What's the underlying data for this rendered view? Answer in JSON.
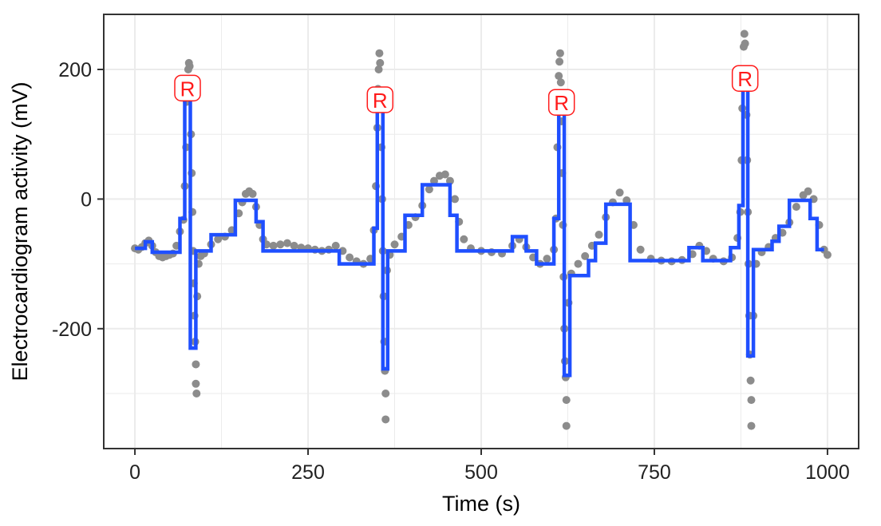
{
  "chart_data": {
    "type": "line",
    "title": "",
    "xlabel": "Time (s)",
    "ylabel": "Electrocardiogram activity (mV)",
    "xlim": [
      -45,
      1045
    ],
    "ylim": [
      -385,
      285
    ],
    "x_ticks": [
      0,
      250,
      500,
      750,
      1000
    ],
    "y_ticks": [
      -200,
      0,
      200
    ],
    "x_tick_labels": [
      "0",
      "250",
      "500",
      "750",
      "1000"
    ],
    "y_tick_labels": [
      "-200",
      "0",
      "200"
    ],
    "grid": true,
    "legend": "none",
    "colors": {
      "raw_points": "#8c8c8c",
      "fitted_step": "#1f4fff",
      "peak_label": "#ff1a1a",
      "panel_border": "#333333",
      "grid": "#ebebeb"
    },
    "series": [
      {
        "type": "scatter",
        "values": [
          [
            0,
            -76
          ],
          [
            5,
            -78
          ],
          [
            10,
            -74
          ],
          [
            15,
            -68
          ],
          [
            20,
            -64
          ],
          [
            25,
            -72
          ],
          [
            30,
            -82
          ],
          [
            35,
            -88
          ],
          [
            40,
            -90
          ],
          [
            45,
            -88
          ],
          [
            50,
            -86
          ],
          [
            55,
            -84
          ],
          [
            60,
            -72
          ],
          [
            65,
            -50
          ],
          [
            70,
            -32
          ],
          [
            72,
            20
          ],
          [
            74,
            80
          ],
          [
            75,
            150
          ],
          [
            76,
            180
          ],
          [
            77,
            200
          ],
          [
            78,
            210
          ],
          [
            79,
            205
          ],
          [
            80,
            170
          ],
          [
            81,
            100
          ],
          [
            82,
            40
          ],
          [
            83,
            -20
          ],
          [
            84,
            -80
          ],
          [
            85,
            -130
          ],
          [
            86,
            -180
          ],
          [
            87,
            -220
          ],
          [
            88,
            -255
          ],
          [
            88,
            -285
          ],
          [
            89,
            -300
          ],
          [
            90,
            -150
          ],
          [
            92,
            -100
          ],
          [
            95,
            -88
          ],
          [
            100,
            -84
          ],
          [
            110,
            -70
          ],
          [
            120,
            -62
          ],
          [
            130,
            -58
          ],
          [
            140,
            -48
          ],
          [
            150,
            -22
          ],
          [
            155,
            -5
          ],
          [
            160,
            8
          ],
          [
            165,
            12
          ],
          [
            170,
            8
          ],
          [
            175,
            -12
          ],
          [
            180,
            -40
          ],
          [
            185,
            -62
          ],
          [
            190,
            -70
          ],
          [
            200,
            -72
          ],
          [
            210,
            -70
          ],
          [
            220,
            -68
          ],
          [
            230,
            -72
          ],
          [
            240,
            -75
          ],
          [
            250,
            -76
          ],
          [
            260,
            -78
          ],
          [
            270,
            -80
          ],
          [
            280,
            -78
          ],
          [
            290,
            -72
          ],
          [
            300,
            -80
          ],
          [
            310,
            -90
          ],
          [
            320,
            -96
          ],
          [
            330,
            -100
          ],
          [
            340,
            -92
          ],
          [
            345,
            -48
          ],
          [
            348,
            20
          ],
          [
            350,
            110
          ],
          [
            351,
            170
          ],
          [
            352,
            200
          ],
          [
            353,
            225
          ],
          [
            354,
            210
          ],
          [
            355,
            150
          ],
          [
            356,
            80
          ],
          [
            357,
            0
          ],
          [
            358,
            -80
          ],
          [
            359,
            -150
          ],
          [
            360,
            -220
          ],
          [
            361,
            -265
          ],
          [
            362,
            -300
          ],
          [
            362,
            -340
          ],
          [
            364,
            -110
          ],
          [
            368,
            -86
          ],
          [
            375,
            -70
          ],
          [
            385,
            -58
          ],
          [
            395,
            -40
          ],
          [
            405,
            -28
          ],
          [
            415,
            -10
          ],
          [
            425,
            15
          ],
          [
            432,
            28
          ],
          [
            440,
            36
          ],
          [
            448,
            38
          ],
          [
            455,
            28
          ],
          [
            462,
            0
          ],
          [
            468,
            -35
          ],
          [
            475,
            -62
          ],
          [
            485,
            -76
          ],
          [
            500,
            -80
          ],
          [
            515,
            -82
          ],
          [
            530,
            -84
          ],
          [
            545,
            -72
          ],
          [
            555,
            -62
          ],
          [
            565,
            -74
          ],
          [
            575,
            -90
          ],
          [
            585,
            -100
          ],
          [
            595,
            -92
          ],
          [
            605,
            -78
          ],
          [
            608,
            -30
          ],
          [
            610,
            80
          ],
          [
            611,
            150
          ],
          [
            612,
            190
          ],
          [
            613,
            212
          ],
          [
            614,
            225
          ],
          [
            615,
            180
          ],
          [
            616,
            120
          ],
          [
            617,
            40
          ],
          [
            618,
            -40
          ],
          [
            619,
            -120
          ],
          [
            620,
            -200
          ],
          [
            621,
            -250
          ],
          [
            622,
            -275
          ],
          [
            623,
            -310
          ],
          [
            623,
            -350
          ],
          [
            626,
            -160
          ],
          [
            630,
            -115
          ],
          [
            640,
            -100
          ],
          [
            650,
            -88
          ],
          [
            660,
            -72
          ],
          [
            670,
            -55
          ],
          [
            680,
            -28
          ],
          [
            690,
            -5
          ],
          [
            700,
            10
          ],
          [
            710,
            -2
          ],
          [
            720,
            -40
          ],
          [
            730,
            -78
          ],
          [
            745,
            -92
          ],
          [
            760,
            -95
          ],
          [
            775,
            -96
          ],
          [
            790,
            -94
          ],
          [
            805,
            -85
          ],
          [
            815,
            -72
          ],
          [
            825,
            -80
          ],
          [
            835,
            -92
          ],
          [
            850,
            -96
          ],
          [
            862,
            -90
          ],
          [
            870,
            -60
          ],
          [
            874,
            -20
          ],
          [
            876,
            60
          ],
          [
            877,
            140
          ],
          [
            878,
            200
          ],
          [
            879,
            235
          ],
          [
            880,
            255
          ],
          [
            881,
            240
          ],
          [
            882,
            190
          ],
          [
            883,
            130
          ],
          [
            884,
            60
          ],
          [
            885,
            -20
          ],
          [
            886,
            -100
          ],
          [
            887,
            -180
          ],
          [
            888,
            -240
          ],
          [
            889,
            -280
          ],
          [
            890,
            -310
          ],
          [
            890,
            -350
          ],
          [
            893,
            -180
          ],
          [
            897,
            -100
          ],
          [
            905,
            -82
          ],
          [
            915,
            -74
          ],
          [
            925,
            -60
          ],
          [
            935,
            -52
          ],
          [
            945,
            -36
          ],
          [
            955,
            -12
          ],
          [
            965,
            6
          ],
          [
            972,
            12
          ],
          [
            980,
            0
          ],
          [
            988,
            -40
          ],
          [
            995,
            -78
          ],
          [
            1000,
            -86
          ]
        ]
      },
      {
        "type": "step",
        "values": [
          [
            0,
            -76
          ],
          [
            15,
            -76
          ],
          [
            15,
            -66
          ],
          [
            25,
            -66
          ],
          [
            25,
            -82
          ],
          [
            65,
            -82
          ],
          [
            65,
            -30
          ],
          [
            72,
            -30
          ],
          [
            72,
            165
          ],
          [
            80,
            165
          ],
          [
            80,
            -230
          ],
          [
            88,
            -230
          ],
          [
            88,
            -80
          ],
          [
            110,
            -80
          ],
          [
            110,
            -55
          ],
          [
            145,
            -55
          ],
          [
            145,
            -2
          ],
          [
            175,
            -2
          ],
          [
            175,
            -35
          ],
          [
            185,
            -35
          ],
          [
            185,
            -80
          ],
          [
            295,
            -80
          ],
          [
            295,
            -100
          ],
          [
            345,
            -100
          ],
          [
            345,
            -45
          ],
          [
            350,
            -45
          ],
          [
            350,
            152
          ],
          [
            358,
            152
          ],
          [
            358,
            -262
          ],
          [
            365,
            -262
          ],
          [
            365,
            -80
          ],
          [
            390,
            -80
          ],
          [
            390,
            -25
          ],
          [
            415,
            -25
          ],
          [
            415,
            22
          ],
          [
            455,
            22
          ],
          [
            455,
            -25
          ],
          [
            465,
            -25
          ],
          [
            465,
            -80
          ],
          [
            545,
            -80
          ],
          [
            545,
            -58
          ],
          [
            565,
            -58
          ],
          [
            565,
            -80
          ],
          [
            580,
            -80
          ],
          [
            580,
            -100
          ],
          [
            605,
            -100
          ],
          [
            605,
            -30
          ],
          [
            612,
            -30
          ],
          [
            612,
            148
          ],
          [
            620,
            148
          ],
          [
            620,
            -272
          ],
          [
            628,
            -272
          ],
          [
            628,
            -118
          ],
          [
            655,
            -118
          ],
          [
            655,
            -95
          ],
          [
            665,
            -95
          ],
          [
            665,
            -68
          ],
          [
            680,
            -68
          ],
          [
            680,
            -8
          ],
          [
            715,
            -8
          ],
          [
            715,
            -95
          ],
          [
            800,
            -95
          ],
          [
            800,
            -75
          ],
          [
            820,
            -75
          ],
          [
            820,
            -95
          ],
          [
            860,
            -95
          ],
          [
            860,
            -75
          ],
          [
            872,
            -75
          ],
          [
            872,
            -10
          ],
          [
            878,
            -10
          ],
          [
            878,
            182
          ],
          [
            885,
            182
          ],
          [
            885,
            -242
          ],
          [
            893,
            -242
          ],
          [
            893,
            -78
          ],
          [
            920,
            -78
          ],
          [
            920,
            -65
          ],
          [
            930,
            -65
          ],
          [
            930,
            -42
          ],
          [
            945,
            -42
          ],
          [
            945,
            -2
          ],
          [
            975,
            -2
          ],
          [
            975,
            -30
          ],
          [
            985,
            -30
          ],
          [
            985,
            -78
          ],
          [
            995,
            -78
          ]
        ]
      }
    ],
    "annotations": [
      {
        "text": "R",
        "x": 76,
        "y": 170
      },
      {
        "text": "R",
        "x": 354,
        "y": 152
      },
      {
        "text": "R",
        "x": 616,
        "y": 148
      },
      {
        "text": "R",
        "x": 881,
        "y": 185
      }
    ]
  }
}
